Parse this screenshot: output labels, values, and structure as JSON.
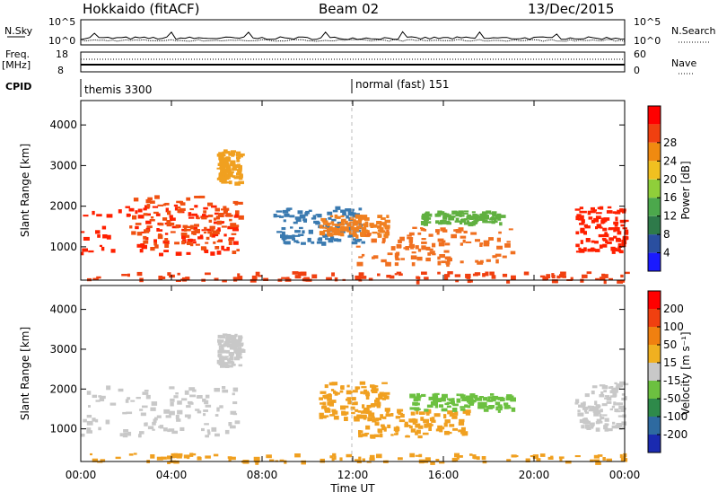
{
  "header": {
    "station": "Hokkaido (fitACF)",
    "beam": "Beam 02",
    "date": "13/Dec/2015"
  },
  "status_panels": {
    "nsky_label": "N.Sky",
    "nsearch_label": "N.Search",
    "nsky_ticks": [
      "10^5",
      "10^0"
    ],
    "nsearch_ticks": [
      "10^5",
      "10^0"
    ],
    "freq_label": "Freq.",
    "freq_unit": "[MHz]",
    "freq_ticks": [
      "18",
      "8"
    ],
    "nave_label": "Nave",
    "nave_ticks": [
      "60",
      "0"
    ],
    "cpid_label": "CPID",
    "cpid_segments": [
      {
        "text": "themis 3300",
        "start_hour": 0
      },
      {
        "text": "normal (fast) 151",
        "start_hour": 12
      }
    ]
  },
  "chart_data": [
    {
      "type": "heatmap",
      "name": "power",
      "ylabel": "Slant Range [km]",
      "yticks": [
        1000,
        2000,
        3000,
        4000
      ],
      "ylim": [
        180,
        4600
      ],
      "xlim": [
        0,
        24
      ],
      "colorbar": {
        "label": "Power [dB]",
        "ticks": [
          4,
          8,
          12,
          16,
          20,
          24,
          28
        ],
        "colors": [
          "#1a1aff",
          "#2a4fa0",
          "#2e7a4a",
          "#4ca84c",
          "#8fcf3a",
          "#f0c020",
          "#f08a10",
          "#f04010",
          "#ff0000"
        ]
      },
      "regions": [
        {
          "x": [
            0.0,
            6.8
          ],
          "y": [
            850,
            2050
          ],
          "color": "#ff2000"
        },
        {
          "x": [
            2.0,
            7.0
          ],
          "y": [
            900,
            2300
          ],
          "color": "#f05010"
        },
        {
          "x": [
            6.0,
            7.0
          ],
          "y": [
            2600,
            3400
          ],
          "color": "#f0a020"
        },
        {
          "x": [
            8.5,
            12.5
          ],
          "y": [
            1100,
            2000
          ],
          "color": "#3a7ab0"
        },
        {
          "x": [
            10.5,
            13.5
          ],
          "y": [
            1300,
            1800
          ],
          "color": "#f08020"
        },
        {
          "x": [
            12.0,
            19.0
          ],
          "y": [
            600,
            1500
          ],
          "color": "#f07020"
        },
        {
          "x": [
            15.0,
            18.5
          ],
          "y": [
            1600,
            1900
          ],
          "color": "#60b040"
        },
        {
          "x": [
            21.8,
            24.0
          ],
          "y": [
            900,
            2000
          ],
          "color": "#ff2000"
        },
        {
          "x": [
            0.0,
            24.0
          ],
          "y": [
            180,
            400
          ],
          "color": "#f04010"
        }
      ]
    },
    {
      "type": "heatmap",
      "name": "velocity",
      "ylabel": "Slant Range [km]",
      "yticks": [
        1000,
        2000,
        3000,
        4000
      ],
      "ylim": [
        180,
        4600
      ],
      "xlim": [
        0,
        24
      ],
      "xticks": [
        "00:00",
        "04:00",
        "08:00",
        "12:00",
        "16:00",
        "20:00",
        "00:00"
      ],
      "xlabel": "Time UT",
      "colorbar": {
        "label": "Velocity [m s⁻¹]",
        "ticks": [
          200,
          100,
          50,
          15,
          -15,
          -50,
          -100,
          -200
        ],
        "colors": [
          "#1a2ab0",
          "#2e6aa0",
          "#2e8a4a",
          "#6cc040",
          "#c8c8c8",
          "#f0b020",
          "#f08010",
          "#f04010",
          "#ff0000"
        ]
      },
      "regions": [
        {
          "x": [
            0.0,
            6.8
          ],
          "y": [
            850,
            2100
          ],
          "color": "#c8c8c8"
        },
        {
          "x": [
            6.0,
            7.0
          ],
          "y": [
            2600,
            3400
          ],
          "color": "#c8c8c8"
        },
        {
          "x": [
            10.5,
            13.5
          ],
          "y": [
            1300,
            2200
          ],
          "color": "#f0a020"
        },
        {
          "x": [
            12.0,
            17.0
          ],
          "y": [
            800,
            1500
          ],
          "color": "#f0a020"
        },
        {
          "x": [
            14.5,
            19.0
          ],
          "y": [
            1500,
            1900
          ],
          "color": "#6cc040"
        },
        {
          "x": [
            21.8,
            24.0
          ],
          "y": [
            1000,
            2200
          ],
          "color": "#c8c8c8"
        },
        {
          "x": [
            0.0,
            24.0
          ],
          "y": [
            180,
            400
          ],
          "color": "#f0a020"
        }
      ]
    }
  ]
}
